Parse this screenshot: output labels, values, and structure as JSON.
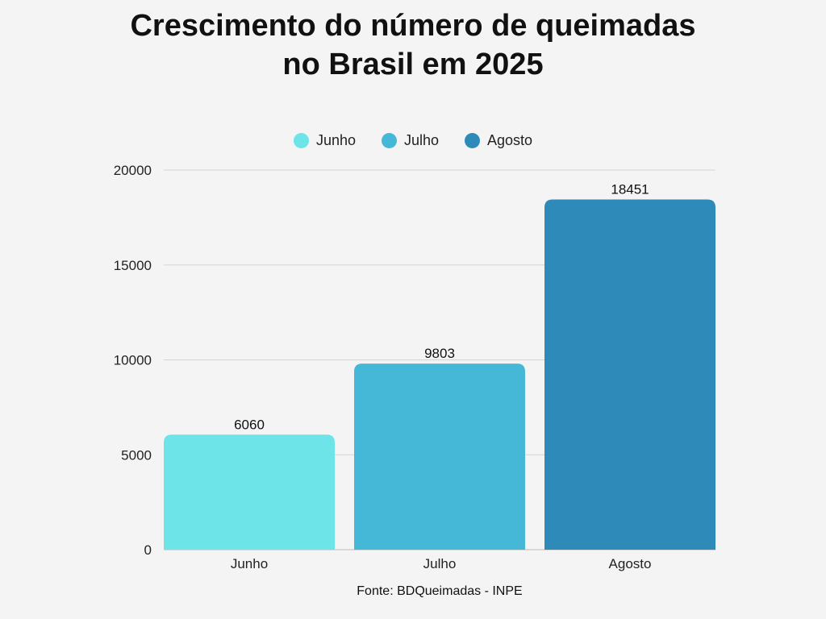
{
  "title_lines": [
    "Crescimento do número de queimadas",
    "no Brasil em 2025"
  ],
  "source": "Fonte: BDQueimadas - INPE",
  "colors": [
    "#6ce4e8",
    "#44b8d6",
    "#2e8bb9"
  ],
  "chart_data": {
    "type": "bar",
    "title": "Crescimento do número de queimadas no Brasil em 2025",
    "categories": [
      "Junho",
      "Julho",
      "Agosto"
    ],
    "values": [
      6060,
      9803,
      18451
    ],
    "data_labels": [
      "6060",
      "9803",
      "18451"
    ],
    "legend": [
      "Junho",
      "Julho",
      "Agosto"
    ],
    "legend_position": "top-center",
    "ylim": [
      0,
      20000
    ],
    "yticks": [
      0,
      5000,
      10000,
      15000,
      20000
    ],
    "ytick_labels": [
      "0",
      "5000",
      "10000",
      "15000",
      "20000"
    ],
    "xlabel": "",
    "ylabel": "",
    "grid": true
  }
}
